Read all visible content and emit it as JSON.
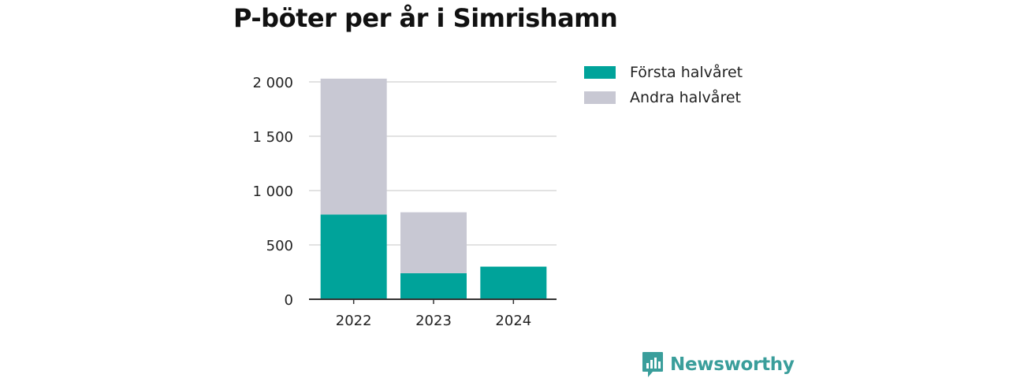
{
  "title": "P-böter per år i Simrishamn",
  "brand": {
    "name": "Newsworthy",
    "color": "#3a9e9b"
  },
  "chart_data": {
    "type": "bar",
    "stacked": true,
    "categories": [
      "2022",
      "2023",
      "2024"
    ],
    "series": [
      {
        "name": "Första halvåret",
        "color": "#00a39a",
        "values": [
          780,
          240,
          300
        ]
      },
      {
        "name": "Andra halvåret",
        "color": "#c8c8d3",
        "values": [
          1250,
          560,
          0
        ]
      }
    ],
    "yticks": [
      0,
      500,
      1000,
      1500,
      2000
    ],
    "ytick_labels": [
      "0",
      "500",
      "1 000",
      "1 500",
      "2 000"
    ],
    "ylim": [
      0,
      2000
    ],
    "grid": true,
    "legend": "right"
  }
}
